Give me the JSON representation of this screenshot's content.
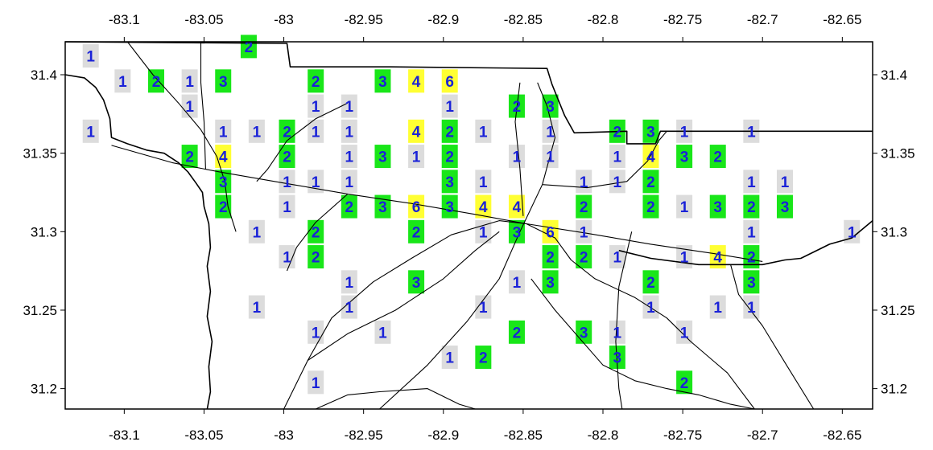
{
  "x_ticks": [
    "-83.1",
    "-83.05",
    "-83",
    "-82.95",
    "-82.9",
    "-82.85",
    "-82.8",
    "-82.75",
    "-82.7",
    "-82.65"
  ],
  "y_ticks": [
    "31.4",
    "31.35",
    "31.3",
    "31.25",
    "31.2"
  ],
  "legend_colors": {
    "1": "#dcdcdc",
    "2": "#19e619",
    "3": "#19e619",
    "4": "#ffff33",
    "6": "#ffff33"
  },
  "cells": [
    {
      "lon": -83.121,
      "lat": 31.412,
      "count": 1
    },
    {
      "lon": -83.022,
      "lat": 31.418,
      "count": 2
    },
    {
      "lon": -83.101,
      "lat": 31.396,
      "count": 1
    },
    {
      "lon": -83.08,
      "lat": 31.396,
      "count": 2
    },
    {
      "lon": -83.059,
      "lat": 31.396,
      "count": 1
    },
    {
      "lon": -83.038,
      "lat": 31.396,
      "count": 3
    },
    {
      "lon": -82.98,
      "lat": 31.396,
      "count": 2
    },
    {
      "lon": -82.938,
      "lat": 31.396,
      "count": 3
    },
    {
      "lon": -82.917,
      "lat": 31.396,
      "count": 4
    },
    {
      "lon": -82.896,
      "lat": 31.396,
      "count": 6
    },
    {
      "lon": -83.059,
      "lat": 31.38,
      "count": 1
    },
    {
      "lon": -82.98,
      "lat": 31.38,
      "count": 1
    },
    {
      "lon": -82.959,
      "lat": 31.38,
      "count": 1
    },
    {
      "lon": -82.896,
      "lat": 31.38,
      "count": 1
    },
    {
      "lon": -82.854,
      "lat": 31.38,
      "count": 2
    },
    {
      "lon": -82.833,
      "lat": 31.38,
      "count": 3
    },
    {
      "lon": -83.121,
      "lat": 31.364,
      "count": 1
    },
    {
      "lon": -83.038,
      "lat": 31.364,
      "count": 1
    },
    {
      "lon": -83.017,
      "lat": 31.364,
      "count": 1
    },
    {
      "lon": -82.998,
      "lat": 31.364,
      "count": 2
    },
    {
      "lon": -82.98,
      "lat": 31.364,
      "count": 1
    },
    {
      "lon": -82.959,
      "lat": 31.364,
      "count": 1
    },
    {
      "lon": -82.917,
      "lat": 31.364,
      "count": 4
    },
    {
      "lon": -82.896,
      "lat": 31.364,
      "count": 2
    },
    {
      "lon": -82.875,
      "lat": 31.364,
      "count": 1
    },
    {
      "lon": -82.833,
      "lat": 31.364,
      "count": 1
    },
    {
      "lon": -82.791,
      "lat": 31.364,
      "count": 2
    },
    {
      "lon": -82.77,
      "lat": 31.364,
      "count": 3
    },
    {
      "lon": -82.749,
      "lat": 31.364,
      "count": 1
    },
    {
      "lon": -82.707,
      "lat": 31.364,
      "count": 1
    },
    {
      "lon": -83.059,
      "lat": 31.348,
      "count": 2
    },
    {
      "lon": -83.038,
      "lat": 31.348,
      "count": 4
    },
    {
      "lon": -82.998,
      "lat": 31.348,
      "count": 2
    },
    {
      "lon": -82.959,
      "lat": 31.348,
      "count": 1
    },
    {
      "lon": -82.938,
      "lat": 31.348,
      "count": 3
    },
    {
      "lon": -82.917,
      "lat": 31.348,
      "count": 1
    },
    {
      "lon": -82.896,
      "lat": 31.348,
      "count": 2
    },
    {
      "lon": -82.854,
      "lat": 31.348,
      "count": 1
    },
    {
      "lon": -82.833,
      "lat": 31.348,
      "count": 1
    },
    {
      "lon": -82.791,
      "lat": 31.348,
      "count": 1
    },
    {
      "lon": -82.77,
      "lat": 31.348,
      "count": 4
    },
    {
      "lon": -82.749,
      "lat": 31.348,
      "count": 3
    },
    {
      "lon": -82.728,
      "lat": 31.348,
      "count": 2
    },
    {
      "lon": -83.038,
      "lat": 31.332,
      "count": 3
    },
    {
      "lon": -82.998,
      "lat": 31.332,
      "count": 1
    },
    {
      "lon": -82.98,
      "lat": 31.332,
      "count": 1
    },
    {
      "lon": -82.959,
      "lat": 31.332,
      "count": 1
    },
    {
      "lon": -82.896,
      "lat": 31.332,
      "count": 3
    },
    {
      "lon": -82.875,
      "lat": 31.332,
      "count": 1
    },
    {
      "lon": -82.812,
      "lat": 31.332,
      "count": 1
    },
    {
      "lon": -82.791,
      "lat": 31.332,
      "count": 1
    },
    {
      "lon": -82.77,
      "lat": 31.332,
      "count": 2
    },
    {
      "lon": -82.707,
      "lat": 31.332,
      "count": 1
    },
    {
      "lon": -82.686,
      "lat": 31.332,
      "count": 1
    },
    {
      "lon": -83.038,
      "lat": 31.316,
      "count": 2
    },
    {
      "lon": -82.998,
      "lat": 31.316,
      "count": 1
    },
    {
      "lon": -82.959,
      "lat": 31.316,
      "count": 2
    },
    {
      "lon": -82.938,
      "lat": 31.316,
      "count": 3
    },
    {
      "lon": -82.917,
      "lat": 31.316,
      "count": 6
    },
    {
      "lon": -82.896,
      "lat": 31.316,
      "count": 3
    },
    {
      "lon": -82.875,
      "lat": 31.316,
      "count": 4
    },
    {
      "lon": -82.854,
      "lat": 31.316,
      "count": 4
    },
    {
      "lon": -82.812,
      "lat": 31.316,
      "count": 2
    },
    {
      "lon": -82.77,
      "lat": 31.316,
      "count": 2
    },
    {
      "lon": -82.749,
      "lat": 31.316,
      "count": 1
    },
    {
      "lon": -82.728,
      "lat": 31.316,
      "count": 3
    },
    {
      "lon": -82.707,
      "lat": 31.316,
      "count": 2
    },
    {
      "lon": -82.686,
      "lat": 31.316,
      "count": 3
    },
    {
      "lon": -83.017,
      "lat": 31.3,
      "count": 1
    },
    {
      "lon": -82.98,
      "lat": 31.3,
      "count": 2
    },
    {
      "lon": -82.917,
      "lat": 31.3,
      "count": 2
    },
    {
      "lon": -82.875,
      "lat": 31.3,
      "count": 1
    },
    {
      "lon": -82.854,
      "lat": 31.3,
      "count": 3
    },
    {
      "lon": -82.833,
      "lat": 31.3,
      "count": 6
    },
    {
      "lon": -82.812,
      "lat": 31.3,
      "count": 1
    },
    {
      "lon": -82.707,
      "lat": 31.3,
      "count": 1
    },
    {
      "lon": -82.644,
      "lat": 31.3,
      "count": 1
    },
    {
      "lon": -82.998,
      "lat": 31.284,
      "count": 1
    },
    {
      "lon": -82.98,
      "lat": 31.284,
      "count": 2
    },
    {
      "lon": -82.833,
      "lat": 31.284,
      "count": 2
    },
    {
      "lon": -82.812,
      "lat": 31.284,
      "count": 2
    },
    {
      "lon": -82.791,
      "lat": 31.284,
      "count": 1
    },
    {
      "lon": -82.749,
      "lat": 31.284,
      "count": 1
    },
    {
      "lon": -82.728,
      "lat": 31.284,
      "count": 4
    },
    {
      "lon": -82.707,
      "lat": 31.284,
      "count": 2
    },
    {
      "lon": -82.959,
      "lat": 31.268,
      "count": 1
    },
    {
      "lon": -82.917,
      "lat": 31.268,
      "count": 3
    },
    {
      "lon": -82.854,
      "lat": 31.268,
      "count": 1
    },
    {
      "lon": -82.833,
      "lat": 31.268,
      "count": 3
    },
    {
      "lon": -82.77,
      "lat": 31.268,
      "count": 2
    },
    {
      "lon": -82.707,
      "lat": 31.268,
      "count": 3
    },
    {
      "lon": -83.017,
      "lat": 31.252,
      "count": 1
    },
    {
      "lon": -82.959,
      "lat": 31.252,
      "count": 1
    },
    {
      "lon": -82.875,
      "lat": 31.252,
      "count": 1
    },
    {
      "lon": -82.77,
      "lat": 31.252,
      "count": 1
    },
    {
      "lon": -82.728,
      "lat": 31.252,
      "count": 1
    },
    {
      "lon": -82.707,
      "lat": 31.252,
      "count": 1
    },
    {
      "lon": -82.98,
      "lat": 31.236,
      "count": 1
    },
    {
      "lon": -82.938,
      "lat": 31.236,
      "count": 1
    },
    {
      "lon": -82.854,
      "lat": 31.236,
      "count": 2
    },
    {
      "lon": -82.812,
      "lat": 31.236,
      "count": 3
    },
    {
      "lon": -82.791,
      "lat": 31.236,
      "count": 1
    },
    {
      "lon": -82.749,
      "lat": 31.236,
      "count": 1
    },
    {
      "lon": -82.896,
      "lat": 31.22,
      "count": 1
    },
    {
      "lon": -82.875,
      "lat": 31.22,
      "count": 2
    },
    {
      "lon": -82.791,
      "lat": 31.22,
      "count": 3
    },
    {
      "lon": -82.98,
      "lat": 31.204,
      "count": 1
    },
    {
      "lon": -82.749,
      "lat": 31.204,
      "count": 2
    }
  ],
  "boundaries": [
    [
      [
        -83.137,
        31.4
      ],
      [
        -83.125,
        31.398
      ],
      [
        -83.118,
        31.392
      ],
      [
        -83.113,
        31.384
      ],
      [
        -83.109,
        31.372
      ],
      [
        -83.108,
        31.36
      ],
      [
        -83.098,
        31.356
      ],
      [
        -83.086,
        31.352
      ],
      [
        -83.075,
        31.35
      ],
      [
        -83.066,
        31.344
      ],
      [
        -83.06,
        31.338
      ],
      [
        -83.055,
        31.331
      ],
      [
        -83.051,
        31.325
      ],
      [
        -83.05,
        31.316
      ],
      [
        -83.047,
        31.305
      ],
      [
        -83.046,
        31.29
      ],
      [
        -83.048,
        31.278
      ],
      [
        -83.046,
        31.262
      ],
      [
        -83.048,
        31.246
      ],
      [
        -83.045,
        31.23
      ],
      [
        -83.047,
        31.214
      ],
      [
        -83.046,
        31.198
      ],
      [
        -83.048,
        31.187
      ]
    ],
    [
      [
        -83.137,
        31.421
      ],
      [
        -82.998,
        31.42
      ],
      [
        -82.996,
        31.405
      ],
      [
        -82.933,
        31.405
      ],
      [
        -82.835,
        31.404
      ],
      [
        -82.832,
        31.394
      ],
      [
        -82.824,
        31.374
      ],
      [
        -82.818,
        31.363
      ],
      [
        -82.785,
        31.364
      ],
      [
        -82.785,
        31.356
      ],
      [
        -82.767,
        31.356
      ],
      [
        -82.764,
        31.364
      ],
      [
        -82.631,
        31.364
      ]
    ],
    [
      [
        -82.631,
        31.307
      ],
      [
        -82.644,
        31.296
      ],
      [
        -82.658,
        31.292
      ],
      [
        -82.676,
        31.283
      ],
      [
        -82.686,
        31.282
      ],
      [
        -82.7,
        31.279
      ],
      [
        -82.74,
        31.279
      ],
      [
        -82.77,
        31.283
      ],
      [
        -82.79,
        31.288
      ]
    ]
  ],
  "roads": [
    [
      [
        -83.108,
        31.355
      ],
      [
        -83.07,
        31.344
      ],
      [
        -83.04,
        31.338
      ],
      [
        -83.0,
        31.331
      ],
      [
        -82.96,
        31.324
      ],
      [
        -82.92,
        31.318
      ],
      [
        -82.88,
        31.311
      ],
      [
        -82.848,
        31.305
      ],
      [
        -82.81,
        31.299
      ],
      [
        -82.77,
        31.292
      ],
      [
        -82.73,
        31.286
      ],
      [
        -82.7,
        31.281
      ]
    ],
    [
      [
        -82.94,
        31.187
      ],
      [
        -82.91,
        31.215
      ],
      [
        -82.885,
        31.243
      ],
      [
        -82.865,
        31.27
      ],
      [
        -82.852,
        31.3
      ],
      [
        -82.838,
        31.33
      ],
      [
        -82.83,
        31.36
      ],
      [
        -82.835,
        31.38
      ],
      [
        -82.841,
        31.395
      ]
    ],
    [
      [
        -83.0,
        31.187
      ],
      [
        -82.985,
        31.218
      ],
      [
        -82.97,
        31.245
      ],
      [
        -82.944,
        31.268
      ],
      [
        -82.92,
        31.283
      ],
      [
        -82.895,
        31.298
      ],
      [
        -82.865,
        31.307
      ],
      [
        -82.848,
        31.305
      ],
      [
        -82.83,
        31.296
      ],
      [
        -82.82,
        31.282
      ],
      [
        -82.805,
        31.27
      ],
      [
        -82.78,
        31.258
      ],
      [
        -82.76,
        31.245
      ],
      [
        -82.745,
        31.23
      ],
      [
        -82.722,
        31.21
      ],
      [
        -82.705,
        31.187
      ]
    ],
    [
      [
        -83.098,
        31.421
      ],
      [
        -83.082,
        31.4
      ],
      [
        -83.066,
        31.382
      ],
      [
        -83.052,
        31.365
      ],
      [
        -83.042,
        31.348
      ],
      [
        -83.037,
        31.332
      ],
      [
        -83.035,
        31.316
      ],
      [
        -83.03,
        31.3
      ]
    ],
    [
      [
        -83.052,
        31.421
      ],
      [
        -83.052,
        31.395
      ],
      [
        -83.05,
        31.37
      ],
      [
        -83.049,
        31.34
      ]
    ],
    [
      [
        -82.96,
        31.382
      ],
      [
        -82.98,
        31.372
      ],
      [
        -82.998,
        31.358
      ],
      [
        -83.01,
        31.34
      ],
      [
        -83.017,
        31.332
      ]
    ],
    [
      [
        -82.96,
        31.324
      ],
      [
        -82.98,
        31.306
      ],
      [
        -82.992,
        31.29
      ],
      [
        -82.998,
        31.275
      ]
    ],
    [
      [
        -82.838,
        31.33
      ],
      [
        -82.81,
        31.328
      ],
      [
        -82.785,
        31.332
      ],
      [
        -82.772,
        31.345
      ],
      [
        -82.765,
        31.358
      ],
      [
        -82.76,
        31.364
      ]
    ],
    [
      [
        -82.845,
        31.27
      ],
      [
        -82.83,
        31.25
      ],
      [
        -82.8,
        31.215
      ],
      [
        -82.78,
        31.205
      ],
      [
        -82.76,
        31.2
      ],
      [
        -82.74,
        31.196
      ],
      [
        -82.72,
        31.19
      ],
      [
        -82.705,
        31.187
      ]
    ],
    [
      [
        -82.865,
        31.3
      ],
      [
        -82.88,
        31.288
      ],
      [
        -82.9,
        31.27
      ],
      [
        -82.93,
        31.25
      ],
      [
        -82.96,
        31.235
      ],
      [
        -82.985,
        31.218
      ]
    ],
    [
      [
        -82.852,
        31.395
      ],
      [
        -82.855,
        31.37
      ],
      [
        -82.852,
        31.34
      ],
      [
        -82.85,
        31.31
      ]
    ],
    [
      [
        -82.782,
        31.3
      ],
      [
        -82.79,
        31.265
      ],
      [
        -82.792,
        31.23
      ],
      [
        -82.79,
        31.2
      ],
      [
        -82.788,
        31.187
      ]
    ],
    [
      [
        -82.72,
        31.279
      ],
      [
        -82.715,
        31.26
      ],
      [
        -82.7,
        31.24
      ],
      [
        -82.685,
        31.215
      ],
      [
        -82.668,
        31.187
      ]
    ],
    [
      [
        -82.98,
        31.187
      ],
      [
        -82.96,
        31.196
      ],
      [
        -82.94,
        31.198
      ],
      [
        -82.91,
        31.2
      ],
      [
        -82.89,
        31.19
      ],
      [
        -82.88,
        31.187
      ]
    ]
  ]
}
